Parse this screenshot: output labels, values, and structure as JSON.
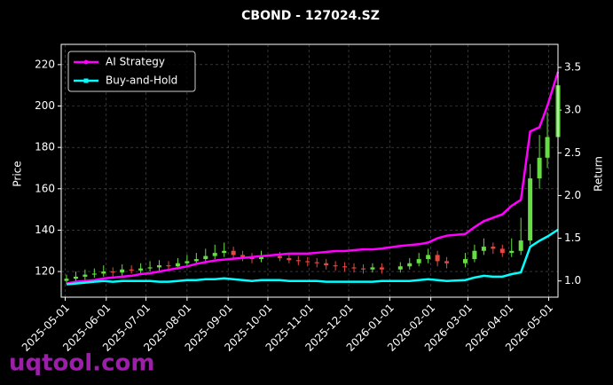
{
  "chart_data": {
    "type": "candlestick",
    "title": "CBOND - 127024.SZ",
    "x": [
      "2025-05-02",
      "2025-05-09",
      "2025-05-16",
      "2025-05-23",
      "2025-05-30",
      "2025-06-06",
      "2025-06-13",
      "2025-06-20",
      "2025-06-27",
      "2025-07-04",
      "2025-07-11",
      "2025-07-18",
      "2025-07-25",
      "2025-08-01",
      "2025-08-08",
      "2025-08-15",
      "2025-08-22",
      "2025-08-29",
      "2025-09-05",
      "2025-09-12",
      "2025-09-19",
      "2025-09-26",
      "2025-10-10",
      "2025-10-17",
      "2025-10-24",
      "2025-10-31",
      "2025-11-07",
      "2025-11-14",
      "2025-11-21",
      "2025-11-28",
      "2025-12-05",
      "2025-12-12",
      "2025-12-19",
      "2025-12-26",
      "2026-01-09",
      "2026-01-16",
      "2026-01-23",
      "2026-01-30",
      "2026-02-06",
      "2026-02-13",
      "2026-02-27",
      "2026-03-06",
      "2026-03-13",
      "2026-03-20",
      "2026-03-27",
      "2026-04-03",
      "2026-04-10",
      "2026-04-17",
      "2026-04-24",
      "2026-04-30",
      "2026-05-08"
    ],
    "open": [
      115.5,
      116.5,
      117.5,
      118.5,
      119,
      120,
      119.5,
      121,
      120.5,
      121.5,
      122,
      123,
      122.5,
      124,
      125,
      126,
      127.5,
      129,
      130,
      128,
      127,
      126,
      127.5,
      126.5,
      125.5,
      125,
      124.5,
      124,
      123,
      122.5,
      122,
      121.5,
      121,
      122,
      121,
      122.5,
      124,
      126,
      128,
      125,
      124,
      126,
      130,
      132,
      131,
      129,
      130,
      135,
      165,
      175,
      185
    ],
    "high": [
      118.5,
      120,
      121,
      121.5,
      123,
      122,
      123.5,
      123,
      124,
      125,
      125.5,
      125,
      126.5,
      128,
      129,
      131,
      133,
      134,
      132,
      130,
      129,
      130,
      129.5,
      128,
      127.5,
      127,
      126.5,
      126,
      125,
      124.5,
      124,
      123.5,
      124,
      124,
      124.5,
      126.5,
      129,
      131,
      130,
      127,
      129,
      133,
      136,
      134,
      133,
      136,
      146,
      172,
      186,
      197,
      224
    ],
    "low": [
      114,
      115,
      116,
      117,
      117.5,
      117.5,
      118,
      119,
      119,
      120,
      120.5,
      121,
      121,
      122.5,
      123.5,
      124.5,
      126,
      127,
      126,
      125,
      124,
      124.5,
      125,
      124,
      123,
      122.5,
      122,
      121,
      120.5,
      120,
      119.5,
      119,
      119.5,
      119,
      119.5,
      121,
      122.5,
      124,
      122.5,
      121.5,
      122,
      124.5,
      128,
      128.5,
      127,
      127,
      128,
      133,
      160,
      170,
      180
    ],
    "close": [
      116.5,
      117.5,
      118.5,
      119,
      120,
      119.5,
      121,
      120.5,
      121.5,
      122,
      123,
      122.5,
      124,
      125,
      126,
      127.5,
      129,
      130,
      128,
      127,
      126,
      127.5,
      126.5,
      125.5,
      125,
      124.5,
      124,
      123,
      122.5,
      122,
      121.5,
      121,
      122,
      121,
      122.5,
      124,
      126,
      128,
      125,
      124,
      126,
      130,
      132,
      131,
      129,
      130,
      135,
      165,
      175,
      185,
      210
    ],
    "up_color": "#66dd44",
    "down_color": "#e8473f",
    "series": [
      {
        "name": "AI Strategy",
        "color": "#ff00ff",
        "axis": "y2",
        "marker": "circle",
        "values": [
          0.97,
          0.99,
          1.0,
          1.01,
          1.03,
          1.04,
          1.05,
          1.06,
          1.08,
          1.09,
          1.11,
          1.13,
          1.15,
          1.17,
          1.2,
          1.22,
          1.24,
          1.25,
          1.26,
          1.27,
          1.28,
          1.29,
          1.31,
          1.32,
          1.32,
          1.32,
          1.33,
          1.34,
          1.35,
          1.35,
          1.36,
          1.37,
          1.37,
          1.38,
          1.41,
          1.42,
          1.43,
          1.45,
          1.5,
          1.53,
          1.55,
          1.63,
          1.7,
          1.74,
          1.78,
          1.88,
          1.95,
          2.75,
          2.8,
          3.05,
          3.45
        ]
      },
      {
        "name": "Buy-and-Hold",
        "color": "#00ffff",
        "axis": "y2",
        "marker": "square",
        "values": [
          0.96,
          0.97,
          0.98,
          0.99,
          1.0,
          0.99,
          1.0,
          1.0,
          1.0,
          1.0,
          0.99,
          0.99,
          1.0,
          1.01,
          1.01,
          1.02,
          1.02,
          1.03,
          1.02,
          1.01,
          1.0,
          1.01,
          1.01,
          1.0,
          1.0,
          1.0,
          1.0,
          0.99,
          0.99,
          0.99,
          0.99,
          0.99,
          0.99,
          1.0,
          1.0,
          1.0,
          1.01,
          1.02,
          1.01,
          1.0,
          1.01,
          1.04,
          1.06,
          1.05,
          1.05,
          1.08,
          1.1,
          1.4,
          1.47,
          1.52,
          1.6
        ]
      }
    ],
    "ylabel": "Price",
    "y2label": "Return",
    "xlim": [
      "2025-04-28",
      "2026-05-08"
    ],
    "xticks": [
      "2025-05-01",
      "2025-06-01",
      "2025-07-01",
      "2025-08-01",
      "2025-09-01",
      "2025-10-01",
      "2025-11-01",
      "2025-12-01",
      "2026-01-01",
      "2026-02-01",
      "2026-03-01",
      "2026-04-01",
      "2026-05-01"
    ],
    "ylim": [
      107.6,
      229.8
    ],
    "yticks": [
      120,
      140,
      160,
      180,
      200,
      220
    ],
    "y2lim": [
      0.81,
      3.77
    ],
    "y2ticks": [
      {
        "value": 1,
        "label": "1.0"
      },
      1.5,
      {
        "value": 2,
        "label": "2.0"
      },
      2.5,
      {
        "value": 3,
        "label": "3.0"
      },
      3.5
    ],
    "grid": true,
    "legend": "upper left"
  },
  "watermark": "uqtool.com"
}
